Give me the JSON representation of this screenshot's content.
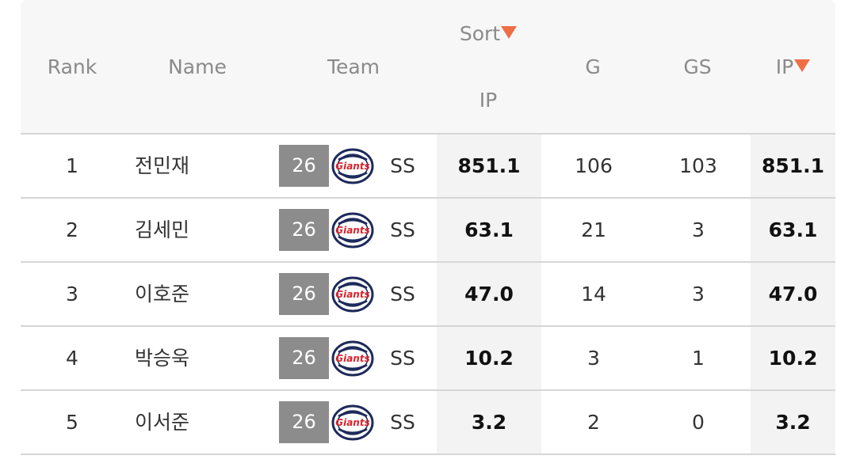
{
  "header": {
    "rank": "Rank",
    "name": "Name",
    "team": "Team",
    "sort_label": "Sort",
    "sort_sub": "IP",
    "g": "G",
    "gs": "GS",
    "ip": "IP"
  },
  "colors": {
    "sort_arrow": "#ee6e48",
    "badge_bg": "#8c8c8c",
    "logo_navy": "#1d2a5a",
    "logo_red": "#d9252e"
  },
  "team_logo": {
    "icon": "giants-logo-icon",
    "wordmark": "Giants"
  },
  "rows": [
    {
      "rank": "1",
      "name": "전민재",
      "number": "26",
      "position": "SS",
      "sort_ip": "851.1",
      "g": "106",
      "gs": "103",
      "ip": "851.1"
    },
    {
      "rank": "2",
      "name": "김세민",
      "number": "26",
      "position": "SS",
      "sort_ip": "63.1",
      "g": "21",
      "gs": "3",
      "ip": "63.1"
    },
    {
      "rank": "3",
      "name": "이호준",
      "number": "26",
      "position": "SS",
      "sort_ip": "47.0",
      "g": "14",
      "gs": "3",
      "ip": "47.0"
    },
    {
      "rank": "4",
      "name": "박승욱",
      "number": "26",
      "position": "SS",
      "sort_ip": "10.2",
      "g": "3",
      "gs": "1",
      "ip": "10.2"
    },
    {
      "rank": "5",
      "name": "이서준",
      "number": "26",
      "position": "SS",
      "sort_ip": "3.2",
      "g": "2",
      "gs": "0",
      "ip": "3.2"
    }
  ]
}
